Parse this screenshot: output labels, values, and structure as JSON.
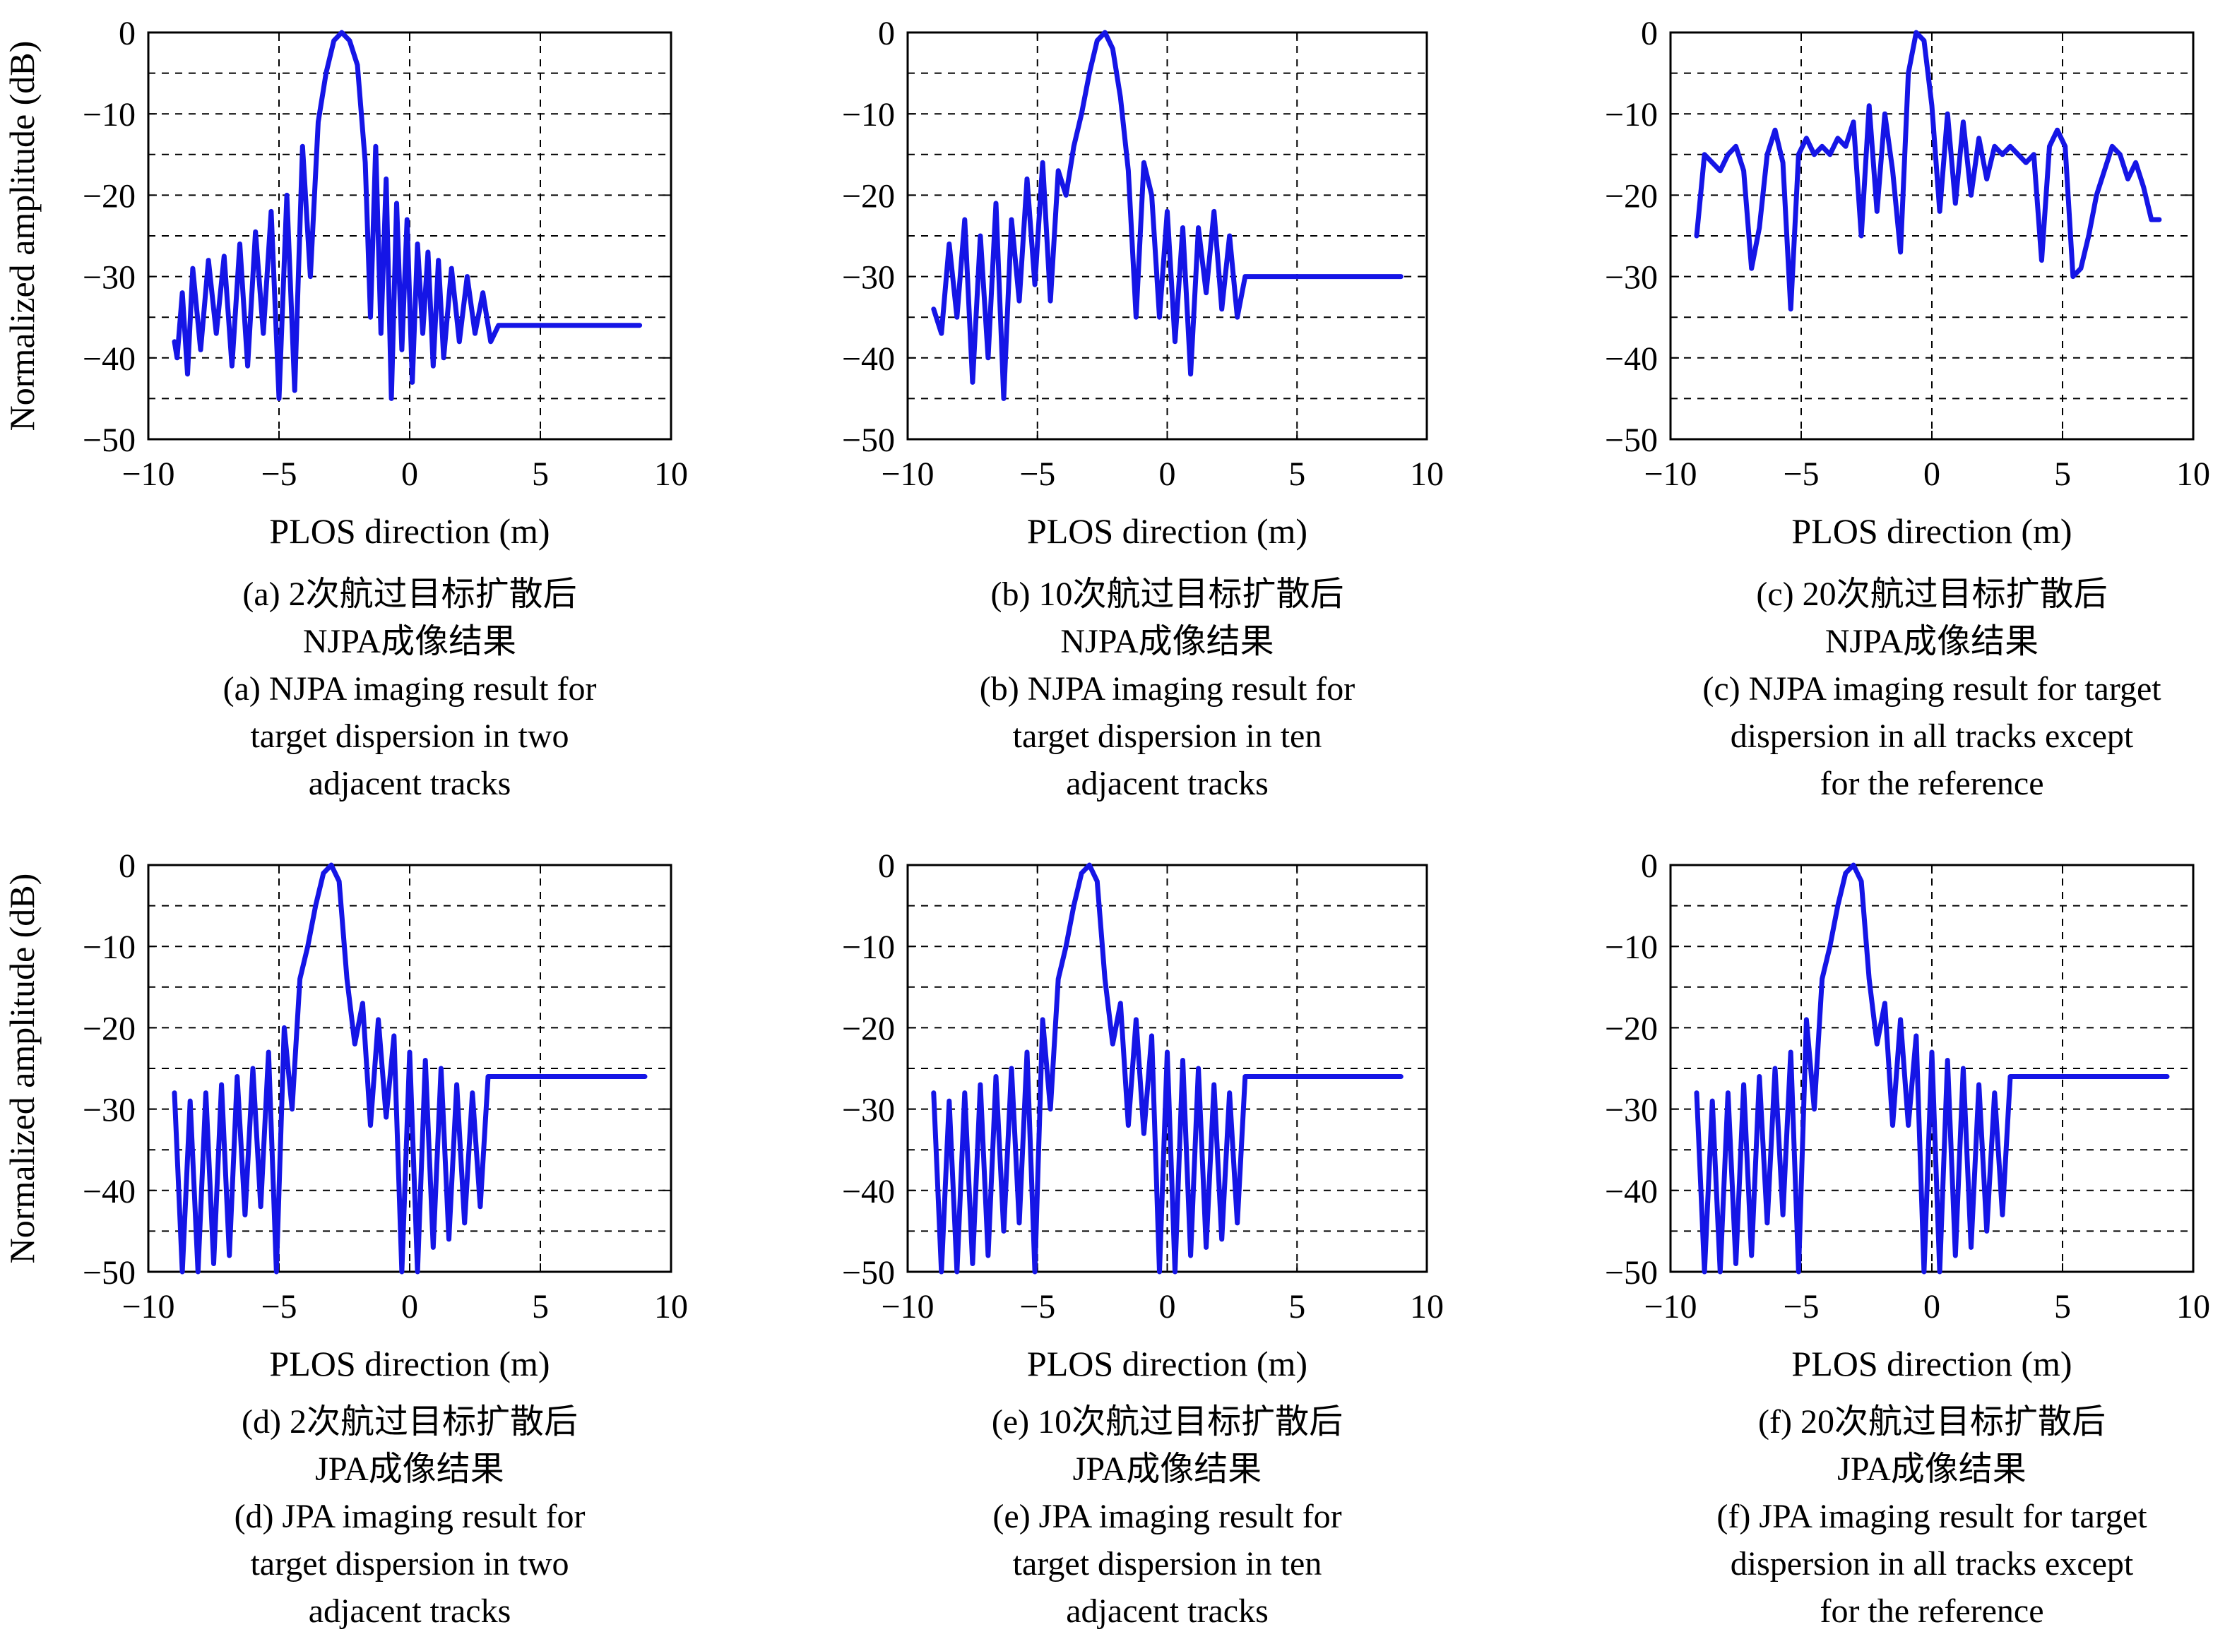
{
  "figure": {
    "ylabel": "Normalized amplitude (dB)",
    "xlabel": "PLOS direction (m)",
    "line_color": "#1515e6"
  },
  "chart_data": [
    {
      "type": "line",
      "panel": "a",
      "xlabel": "PLOS direction (m)",
      "ylabel": "Normalized amplitude (dB)",
      "xlim": [
        -10,
        10
      ],
      "ylim": [
        -50,
        0
      ],
      "xticks": [
        "−10",
        "−5",
        "0",
        "5",
        "10"
      ],
      "yticks": [
        "0",
        "−10",
        "−20",
        "−30",
        "−40",
        "−50"
      ],
      "grid": true,
      "caption": [
        "(a) 2次航过目标扩散后",
        "NJPA成像结果",
        "(a) NJPA imaging result for",
        "target dispersion in two",
        "adjacent tracks"
      ],
      "x": [
        -9.0,
        -8.9,
        -8.7,
        -8.5,
        -8.3,
        -8.0,
        -7.7,
        -7.4,
        -7.1,
        -6.8,
        -6.5,
        -6.2,
        -5.9,
        -5.6,
        -5.3,
        -5.0,
        -4.7,
        -4.4,
        -4.1,
        -3.8,
        -3.5,
        -3.2,
        -2.9,
        -2.6,
        -2.3,
        -2.0,
        -1.7,
        -1.5,
        -1.3,
        -1.1,
        -0.9,
        -0.7,
        -0.5,
        -0.3,
        -0.1,
        0.1,
        0.3,
        0.5,
        0.7,
        0.9,
        1.1,
        1.3,
        1.6,
        1.9,
        2.2,
        2.5,
        2.8,
        3.1,
        3.4,
        3.7,
        4.0,
        4.3,
        4.6,
        4.9,
        5.2,
        5.5,
        5.8,
        6.1,
        6.4,
        6.7,
        7.0,
        7.3,
        7.6,
        7.9,
        8.2,
        8.5,
        8.8
      ],
      "series": [
        {
          "values": [
            -38,
            -40,
            -32,
            -42,
            -29,
            -39,
            -28,
            -37,
            -27.5,
            -41,
            -26,
            -41,
            -24.5,
            -37,
            -22,
            -45,
            -20,
            -44,
            -14,
            -30,
            -11,
            -5,
            -1,
            0,
            -1,
            -4,
            -16,
            -35,
            -14,
            -37,
            -18,
            -45,
            -21,
            -39,
            -23,
            -43,
            -26,
            -37,
            -27,
            -41,
            -28,
            -40,
            -29,
            -38,
            -30,
            -37,
            -32,
            -38,
            -36,
            -36,
            -36,
            -36,
            -36,
            -36,
            -36,
            -36,
            -36,
            -36,
            -36,
            -36,
            -36,
            -36,
            -36,
            -36,
            -36,
            -36,
            -36
          ]
        }
      ]
    },
    {
      "type": "line",
      "panel": "b",
      "xlabel": "PLOS direction (m)",
      "ylabel": "",
      "xlim": [
        -10,
        10
      ],
      "ylim": [
        -50,
        0
      ],
      "xticks": [
        "−10",
        "−5",
        "0",
        "5",
        "10"
      ],
      "yticks": [
        "0",
        "−10",
        "−20",
        "−30",
        "−40",
        "−50"
      ],
      "grid": true,
      "caption": [
        "(b) 10次航过目标扩散后",
        "NJPA成像结果",
        "(b) NJPA imaging result for",
        "target dispersion in ten",
        "adjacent tracks"
      ],
      "x": [
        -9.0,
        -8.7,
        -8.4,
        -8.1,
        -7.8,
        -7.5,
        -7.2,
        -6.9,
        -6.6,
        -6.3,
        -6.0,
        -5.7,
        -5.4,
        -5.1,
        -4.8,
        -4.5,
        -4.2,
        -3.9,
        -3.6,
        -3.3,
        -3.0,
        -2.7,
        -2.4,
        -2.1,
        -1.8,
        -1.5,
        -1.2,
        -0.9,
        -0.6,
        -0.3,
        0.0,
        0.3,
        0.6,
        0.9,
        1.2,
        1.5,
        1.8,
        2.1,
        2.4,
        2.7,
        3.0,
        3.3,
        3.6,
        3.9,
        4.2,
        4.5,
        4.8,
        5.1,
        5.4,
        5.7,
        6.0,
        6.3,
        6.6,
        6.9,
        7.2,
        7.5,
        7.8,
        8.1,
        8.4,
        8.7,
        9.0
      ],
      "series": [
        {
          "values": [
            -34,
            -37,
            -26,
            -35,
            -23,
            -43,
            -25,
            -40,
            -21,
            -45,
            -23,
            -33,
            -18,
            -31,
            -16,
            -33,
            -17,
            -20,
            -14,
            -10,
            -5,
            -1,
            0,
            -2,
            -8,
            -17,
            -35,
            -16,
            -20,
            -35,
            -22,
            -38,
            -24,
            -42,
            -24,
            -32,
            -22,
            -34,
            -25,
            -35,
            -30,
            -30,
            -30,
            -30,
            -30,
            -30,
            -30,
            -30,
            -30,
            -30,
            -30,
            -30,
            -30,
            -30,
            -30,
            -30,
            -30,
            -30,
            -30,
            -30,
            -30
          ]
        }
      ]
    },
    {
      "type": "line",
      "panel": "c",
      "xlabel": "PLOS direction (m)",
      "ylabel": "",
      "xlim": [
        -10,
        10
      ],
      "ylim": [
        -50,
        0
      ],
      "xticks": [
        "−10",
        "−5",
        "0",
        "5",
        "10"
      ],
      "yticks": [
        "0",
        "−10",
        "−20",
        "−30",
        "−40",
        "−50"
      ],
      "grid": true,
      "caption": [
        "(c) 20次航过目标扩散后",
        "NJPA成像结果",
        "(c) NJPA imaging result for target",
        "dispersion in all tracks except",
        "for the reference"
      ],
      "x": [
        -9.0,
        -8.7,
        -8.4,
        -8.1,
        -7.8,
        -7.5,
        -7.2,
        -6.9,
        -6.6,
        -6.3,
        -6.0,
        -5.7,
        -5.4,
        -5.1,
        -4.8,
        -4.5,
        -4.2,
        -3.9,
        -3.6,
        -3.3,
        -3.0,
        -2.7,
        -2.4,
        -2.1,
        -1.8,
        -1.5,
        -1.2,
        -0.9,
        -0.6,
        -0.3,
        0.0,
        0.3,
        0.6,
        0.9,
        1.2,
        1.5,
        1.8,
        2.1,
        2.4,
        2.7,
        3.0,
        3.3,
        3.6,
        3.9,
        4.2,
        4.5,
        4.8,
        5.1,
        5.4,
        5.7,
        6.0,
        6.3,
        6.6,
        6.9,
        7.2,
        7.5,
        7.8,
        8.1,
        8.4,
        8.7
      ],
      "series": [
        {
          "values": [
            -25,
            -15,
            -16,
            -17,
            -15,
            -14,
            -17,
            -29,
            -24,
            -15,
            -12,
            -16,
            -34,
            -15,
            -13,
            -15,
            -14,
            -15,
            -13,
            -14,
            -11,
            -25,
            -9,
            -22,
            -10,
            -17,
            -27,
            -5,
            0,
            -1,
            -9,
            -22,
            -10,
            -21,
            -11,
            -20,
            -13,
            -18,
            -14,
            -15,
            -14,
            -15,
            -16,
            -15,
            -28,
            -14,
            -12,
            -14,
            -30,
            -29,
            -25,
            -20,
            -17,
            -14,
            -15,
            -18,
            -16,
            -19,
            -23,
            -23
          ]
        }
      ]
    },
    {
      "type": "line",
      "panel": "d",
      "xlabel": "PLOS direction (m)",
      "ylabel": "Normalized amplitude (dB)",
      "xlim": [
        -10,
        10
      ],
      "ylim": [
        -50,
        0
      ],
      "xticks": [
        "−10",
        "−5",
        "0",
        "5",
        "10"
      ],
      "yticks": [
        "0",
        "−10",
        "−20",
        "−30",
        "−40",
        "−50"
      ],
      "grid": true,
      "caption": [
        "(d) 2次航过目标扩散后",
        "JPA成像结果",
        "(d) JPA imaging result for",
        "target dispersion in two",
        "adjacent tracks"
      ],
      "x": [
        -9.0,
        -8.7,
        -8.4,
        -8.1,
        -7.8,
        -7.5,
        -7.2,
        -6.9,
        -6.6,
        -6.3,
        -6.0,
        -5.7,
        -5.4,
        -5.1,
        -4.8,
        -4.5,
        -4.2,
        -3.9,
        -3.6,
        -3.3,
        -3.0,
        -2.7,
        -2.4,
        -2.1,
        -1.8,
        -1.5,
        -1.2,
        -0.9,
        -0.6,
        -0.3,
        0.0,
        0.3,
        0.6,
        0.9,
        1.2,
        1.5,
        1.8,
        2.1,
        2.4,
        2.7,
        3.0,
        3.3,
        3.6,
        3.9,
        4.2,
        4.5,
        4.8,
        5.1,
        5.4,
        5.7,
        6.0,
        6.3,
        6.6,
        6.9,
        7.2,
        7.5,
        7.8,
        8.1,
        8.4,
        8.7,
        9.0
      ],
      "series": [
        {
          "values": [
            -28,
            -50,
            -29,
            -50,
            -28,
            -49,
            -27,
            -48,
            -26,
            -43,
            -25,
            -42,
            -23,
            -50,
            -20,
            -30,
            -14,
            -10,
            -5,
            -1,
            0,
            -2,
            -14,
            -22,
            -17,
            -32,
            -19,
            -31,
            -21,
            -50,
            -23,
            -50,
            -24,
            -47,
            -25,
            -46,
            -27,
            -44,
            -28,
            -42,
            -26,
            -26,
            -26,
            -26,
            -26,
            -26,
            -26,
            -26,
            -26,
            -26,
            -26,
            -26,
            -26,
            -26,
            -26,
            -26,
            -26,
            -26,
            -26,
            -26,
            -26
          ]
        }
      ]
    },
    {
      "type": "line",
      "panel": "e",
      "xlabel": "PLOS direction (m)",
      "ylabel": "",
      "xlim": [
        -10,
        10
      ],
      "ylim": [
        -50,
        0
      ],
      "xticks": [
        "−10",
        "−5",
        "0",
        "5",
        "10"
      ],
      "yticks": [
        "0",
        "−10",
        "−20",
        "−30",
        "−40",
        "−50"
      ],
      "grid": true,
      "caption": [
        "(e) 10次航过目标扩散后",
        "JPA成像结果",
        "(e) JPA imaging result for",
        "target dispersion in ten",
        "adjacent tracks"
      ],
      "x": [
        -9.0,
        -8.7,
        -8.4,
        -8.1,
        -7.8,
        -7.5,
        -7.2,
        -6.9,
        -6.6,
        -6.3,
        -6.0,
        -5.7,
        -5.4,
        -5.1,
        -4.8,
        -4.5,
        -4.2,
        -3.9,
        -3.6,
        -3.3,
        -3.0,
        -2.7,
        -2.4,
        -2.1,
        -1.8,
        -1.5,
        -1.2,
        -0.9,
        -0.6,
        -0.3,
        0.0,
        0.3,
        0.6,
        0.9,
        1.2,
        1.5,
        1.8,
        2.1,
        2.4,
        2.7,
        3.0,
        3.3,
        3.6,
        3.9,
        4.2,
        4.5,
        4.8,
        5.1,
        5.4,
        5.7,
        6.0,
        6.3,
        6.6,
        6.9,
        7.2,
        7.5,
        7.8,
        8.1,
        8.4,
        8.7,
        9.0
      ],
      "series": [
        {
          "values": [
            -28,
            -50,
            -29,
            -50,
            -28,
            -49,
            -27,
            -48,
            -26,
            -45,
            -25,
            -44,
            -23,
            -50,
            -19,
            -30,
            -14,
            -10,
            -5,
            -1,
            0,
            -2,
            -14,
            -22,
            -17,
            -32,
            -19,
            -33,
            -21,
            -50,
            -23,
            -50,
            -24,
            -48,
            -25,
            -47,
            -27,
            -46,
            -28,
            -44,
            -26,
            -26,
            -26,
            -26,
            -26,
            -26,
            -26,
            -26,
            -26,
            -26,
            -26,
            -26,
            -26,
            -26,
            -26,
            -26,
            -26,
            -26,
            -26,
            -26,
            -26
          ]
        }
      ]
    },
    {
      "type": "line",
      "panel": "f",
      "xlabel": "PLOS direction (m)",
      "ylabel": "",
      "xlim": [
        -10,
        10
      ],
      "ylim": [
        -50,
        0
      ],
      "xticks": [
        "−10",
        "−5",
        "0",
        "5",
        "10"
      ],
      "yticks": [
        "0",
        "−10",
        "−20",
        "−30",
        "−40",
        "−50"
      ],
      "grid": true,
      "caption": [
        "(f) 20次航过目标扩散后",
        "JPA成像结果",
        "(f) JPA imaging result for target",
        "dispersion in all tracks except",
        "for the reference"
      ],
      "x": [
        -9.0,
        -8.7,
        -8.4,
        -8.1,
        -7.8,
        -7.5,
        -7.2,
        -6.9,
        -6.6,
        -6.3,
        -6.0,
        -5.7,
        -5.4,
        -5.1,
        -4.8,
        -4.5,
        -4.2,
        -3.9,
        -3.6,
        -3.3,
        -3.0,
        -2.7,
        -2.4,
        -2.1,
        -1.8,
        -1.5,
        -1.2,
        -0.9,
        -0.6,
        -0.3,
        0.0,
        0.3,
        0.6,
        0.9,
        1.2,
        1.5,
        1.8,
        2.1,
        2.4,
        2.7,
        3.0,
        3.3,
        3.6,
        3.9,
        4.2,
        4.5,
        4.8,
        5.1,
        5.4,
        5.7,
        6.0,
        6.3,
        6.6,
        6.9,
        7.2,
        7.5,
        7.8,
        8.1,
        8.4,
        8.7,
        9.0
      ],
      "series": [
        {
          "values": [
            -28,
            -50,
            -29,
            -50,
            -28,
            -49,
            -27,
            -48,
            -26,
            -44,
            -25,
            -43,
            -23,
            -50,
            -19,
            -30,
            -14,
            -10,
            -5,
            -1,
            0,
            -2,
            -14,
            -22,
            -17,
            -32,
            -19,
            -32,
            -21,
            -50,
            -23,
            -50,
            -24,
            -48,
            -25,
            -47,
            -27,
            -45,
            -28,
            -43,
            -26,
            -26,
            -26,
            -26,
            -26,
            -26,
            -26,
            -26,
            -26,
            -26,
            -26,
            -26,
            -26,
            -26,
            -26,
            -26,
            -26,
            -26,
            -26,
            -26,
            -26
          ]
        }
      ]
    }
  ]
}
